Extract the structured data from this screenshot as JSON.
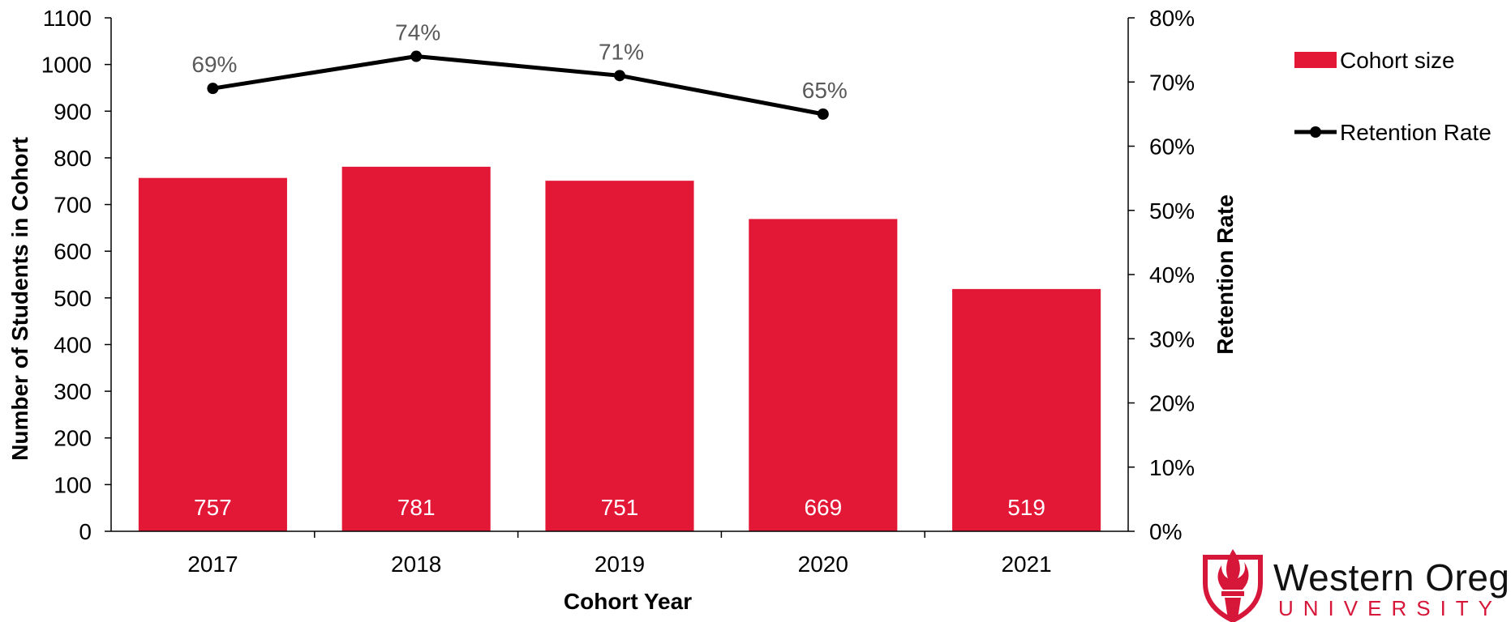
{
  "chart_data": {
    "type": "bar+line",
    "categories": [
      "2017",
      "2018",
      "2019",
      "2020",
      "2021"
    ],
    "series": [
      {
        "name": "Cohort size",
        "type": "bar",
        "axis": "left",
        "values": [
          757,
          781,
          751,
          669,
          519
        ],
        "labels": [
          "757",
          "781",
          "751",
          "669",
          "519"
        ],
        "color": "#e31837"
      },
      {
        "name": "Retention Rate",
        "type": "line",
        "axis": "right",
        "values": [
          0.69,
          0.74,
          0.71,
          0.65,
          null
        ],
        "labels": [
          "69%",
          "74%",
          "71%",
          "65%",
          ""
        ],
        "color": "#000000"
      }
    ],
    "xlabel": "Cohort Year",
    "ylabel": "Number of Students in Cohort",
    "y2label": "Retention Rate",
    "ylim": [
      0,
      1100
    ],
    "y2lim": [
      0,
      0.8
    ],
    "yticks": [
      "0",
      "100",
      "200",
      "300",
      "400",
      "500",
      "600",
      "700",
      "800",
      "900",
      "1000",
      "1100"
    ],
    "y2ticks": [
      "0%",
      "10%",
      "20%",
      "30%",
      "40%",
      "50%",
      "60%",
      "70%",
      "80%"
    ],
    "grid": false,
    "legend_position": "right"
  },
  "brand": {
    "name": "Western Oregon",
    "sub": "UNIVERSITY",
    "color": "#d6173a"
  }
}
